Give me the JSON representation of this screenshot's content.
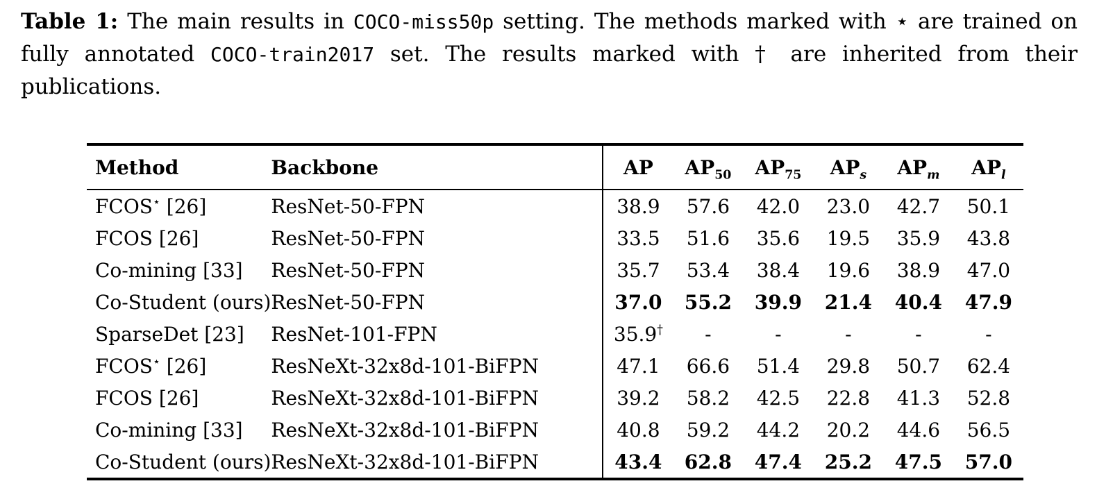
{
  "page": {
    "background_color": "#ffffff",
    "text_color": "#000000"
  },
  "caption": {
    "segments": [
      {
        "text": "Table 1:",
        "style": "bold"
      },
      {
        "text": " The main results in ",
        "style": "normal"
      },
      {
        "text": "COCO-miss50p",
        "style": "mono"
      },
      {
        "text": " setting. The methods marked with ⋆ are trained on fully annotated ",
        "style": "normal"
      },
      {
        "text": "COCO-train2017",
        "style": "mono"
      },
      {
        "text": " set. The results marked with † are inherited from their publications.",
        "style": "normal"
      }
    ]
  },
  "table": {
    "headers": [
      {
        "label": "Method",
        "sub": "",
        "sub_italic": false
      },
      {
        "label": "Backbone",
        "sub": "",
        "sub_italic": false
      },
      {
        "label": "AP",
        "sub": "",
        "sub_italic": false
      },
      {
        "label": "AP",
        "sub": "50",
        "sub_italic": false
      },
      {
        "label": "AP",
        "sub": "75",
        "sub_italic": false
      },
      {
        "label": "AP",
        "sub": "s",
        "sub_italic": true
      },
      {
        "label": "AP",
        "sub": "m",
        "sub_italic": true
      },
      {
        "label": "AP",
        "sub": "l",
        "sub_italic": true
      }
    ],
    "rows": [
      {
        "method": {
          "name": "FCOS",
          "sup": "⋆",
          "cite": "[26]"
        },
        "backbone": "ResNet-50-FPN",
        "values": [
          "38.9",
          "57.6",
          "42.0",
          "23.0",
          "42.7",
          "50.1"
        ],
        "sups": [
          "",
          "",
          "",
          "",
          "",
          ""
        ],
        "bold": false
      },
      {
        "method": {
          "name": "FCOS",
          "sup": "",
          "cite": "[26]"
        },
        "backbone": "ResNet-50-FPN",
        "values": [
          "33.5",
          "51.6",
          "35.6",
          "19.5",
          "35.9",
          "43.8"
        ],
        "sups": [
          "",
          "",
          "",
          "",
          "",
          ""
        ],
        "bold": false
      },
      {
        "method": {
          "name": "Co-mining",
          "sup": "",
          "cite": "[33]"
        },
        "backbone": "ResNet-50-FPN",
        "values": [
          "35.7",
          "53.4",
          "38.4",
          "19.6",
          "38.9",
          "47.0"
        ],
        "sups": [
          "",
          "",
          "",
          "",
          "",
          ""
        ],
        "bold": false
      },
      {
        "method": {
          "name": "Co-Student (ours)",
          "sup": "",
          "cite": ""
        },
        "backbone": "ResNet-50-FPN",
        "values": [
          "37.0",
          "55.2",
          "39.9",
          "21.4",
          "40.4",
          "47.9"
        ],
        "sups": [
          "",
          "",
          "",
          "",
          "",
          ""
        ],
        "bold": true
      },
      {
        "method": {
          "name": "SparseDet",
          "sup": "",
          "cite": "[23]"
        },
        "backbone": "ResNet-101-FPN",
        "values": [
          "35.9",
          "-",
          "-",
          "-",
          "-",
          "-"
        ],
        "sups": [
          "†",
          "",
          "",
          "",
          "",
          ""
        ],
        "bold": false
      },
      {
        "method": {
          "name": "FCOS",
          "sup": "⋆",
          "cite": "[26]"
        },
        "backbone": "ResNeXt-32x8d-101-BiFPN",
        "values": [
          "47.1",
          "66.6",
          "51.4",
          "29.8",
          "50.7",
          "62.4"
        ],
        "sups": [
          "",
          "",
          "",
          "",
          "",
          ""
        ],
        "bold": false
      },
      {
        "method": {
          "name": "FCOS",
          "sup": "",
          "cite": "[26]"
        },
        "backbone": "ResNeXt-32x8d-101-BiFPN",
        "values": [
          "39.2",
          "58.2",
          "42.5",
          "22.8",
          "41.3",
          "52.8"
        ],
        "sups": [
          "",
          "",
          "",
          "",
          "",
          ""
        ],
        "bold": false
      },
      {
        "method": {
          "name": "Co-mining",
          "sup": "",
          "cite": "[33]"
        },
        "backbone": "ResNeXt-32x8d-101-BiFPN",
        "values": [
          "40.8",
          "59.2",
          "44.2",
          "20.2",
          "44.6",
          "56.5"
        ],
        "sups": [
          "",
          "",
          "",
          "",
          "",
          ""
        ],
        "bold": false
      },
      {
        "method": {
          "name": "Co-Student (ours)",
          "sup": "",
          "cite": ""
        },
        "backbone": "ResNeXt-32x8d-101-BiFPN",
        "values": [
          "43.4",
          "62.8",
          "47.4",
          "25.2",
          "47.5",
          "57.0"
        ],
        "sups": [
          "",
          "",
          "",
          "",
          "",
          ""
        ],
        "bold": true
      }
    ]
  }
}
